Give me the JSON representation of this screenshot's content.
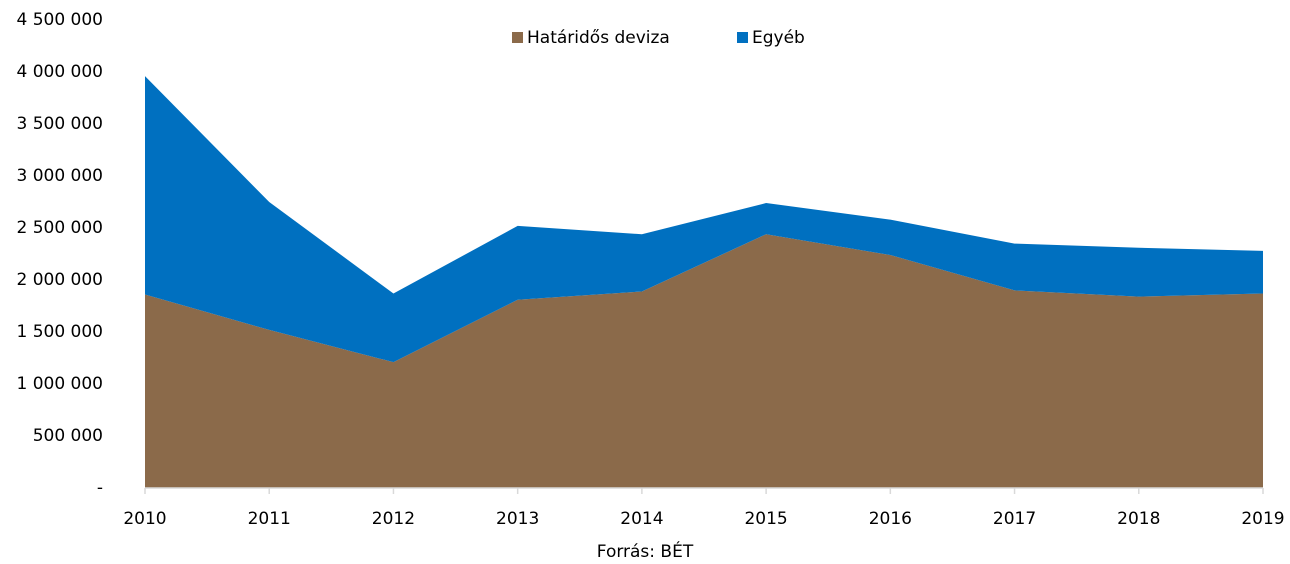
{
  "chart_data": {
    "type": "stacked_area",
    "categories": [
      "2010",
      "2011",
      "2012",
      "2013",
      "2014",
      "2015",
      "2016",
      "2017",
      "2018",
      "2019"
    ],
    "series": [
      {
        "name": "Határidős deviza",
        "color": "#8b6a4a",
        "values": [
          1860000,
          1520000,
          1210000,
          1810000,
          1890000,
          2440000,
          2240000,
          1900000,
          1840000,
          1870000
        ]
      },
      {
        "name": "Egyéb",
        "color": "#0070c0",
        "values": [
          2100000,
          1230000,
          660000,
          710000,
          550000,
          300000,
          340000,
          450000,
          470000,
          410000
        ]
      }
    ],
    "ylim": [
      0,
      4500000
    ],
    "yticks": [
      {
        "value": 0,
        "label": "-"
      },
      {
        "value": 500000,
        "label": "500 000"
      },
      {
        "value": 1000000,
        "label": "1 000 000"
      },
      {
        "value": 1500000,
        "label": "1 500 000"
      },
      {
        "value": 2000000,
        "label": "2 000 000"
      },
      {
        "value": 2500000,
        "label": "2 500 000"
      },
      {
        "value": 3000000,
        "label": "3 000 000"
      },
      {
        "value": 3500000,
        "label": "3 500 000"
      },
      {
        "value": 4000000,
        "label": "4 000 000"
      },
      {
        "value": 4500000,
        "label": "4 500 000"
      }
    ],
    "legend": "top",
    "source": "Forrás: BÉT"
  }
}
